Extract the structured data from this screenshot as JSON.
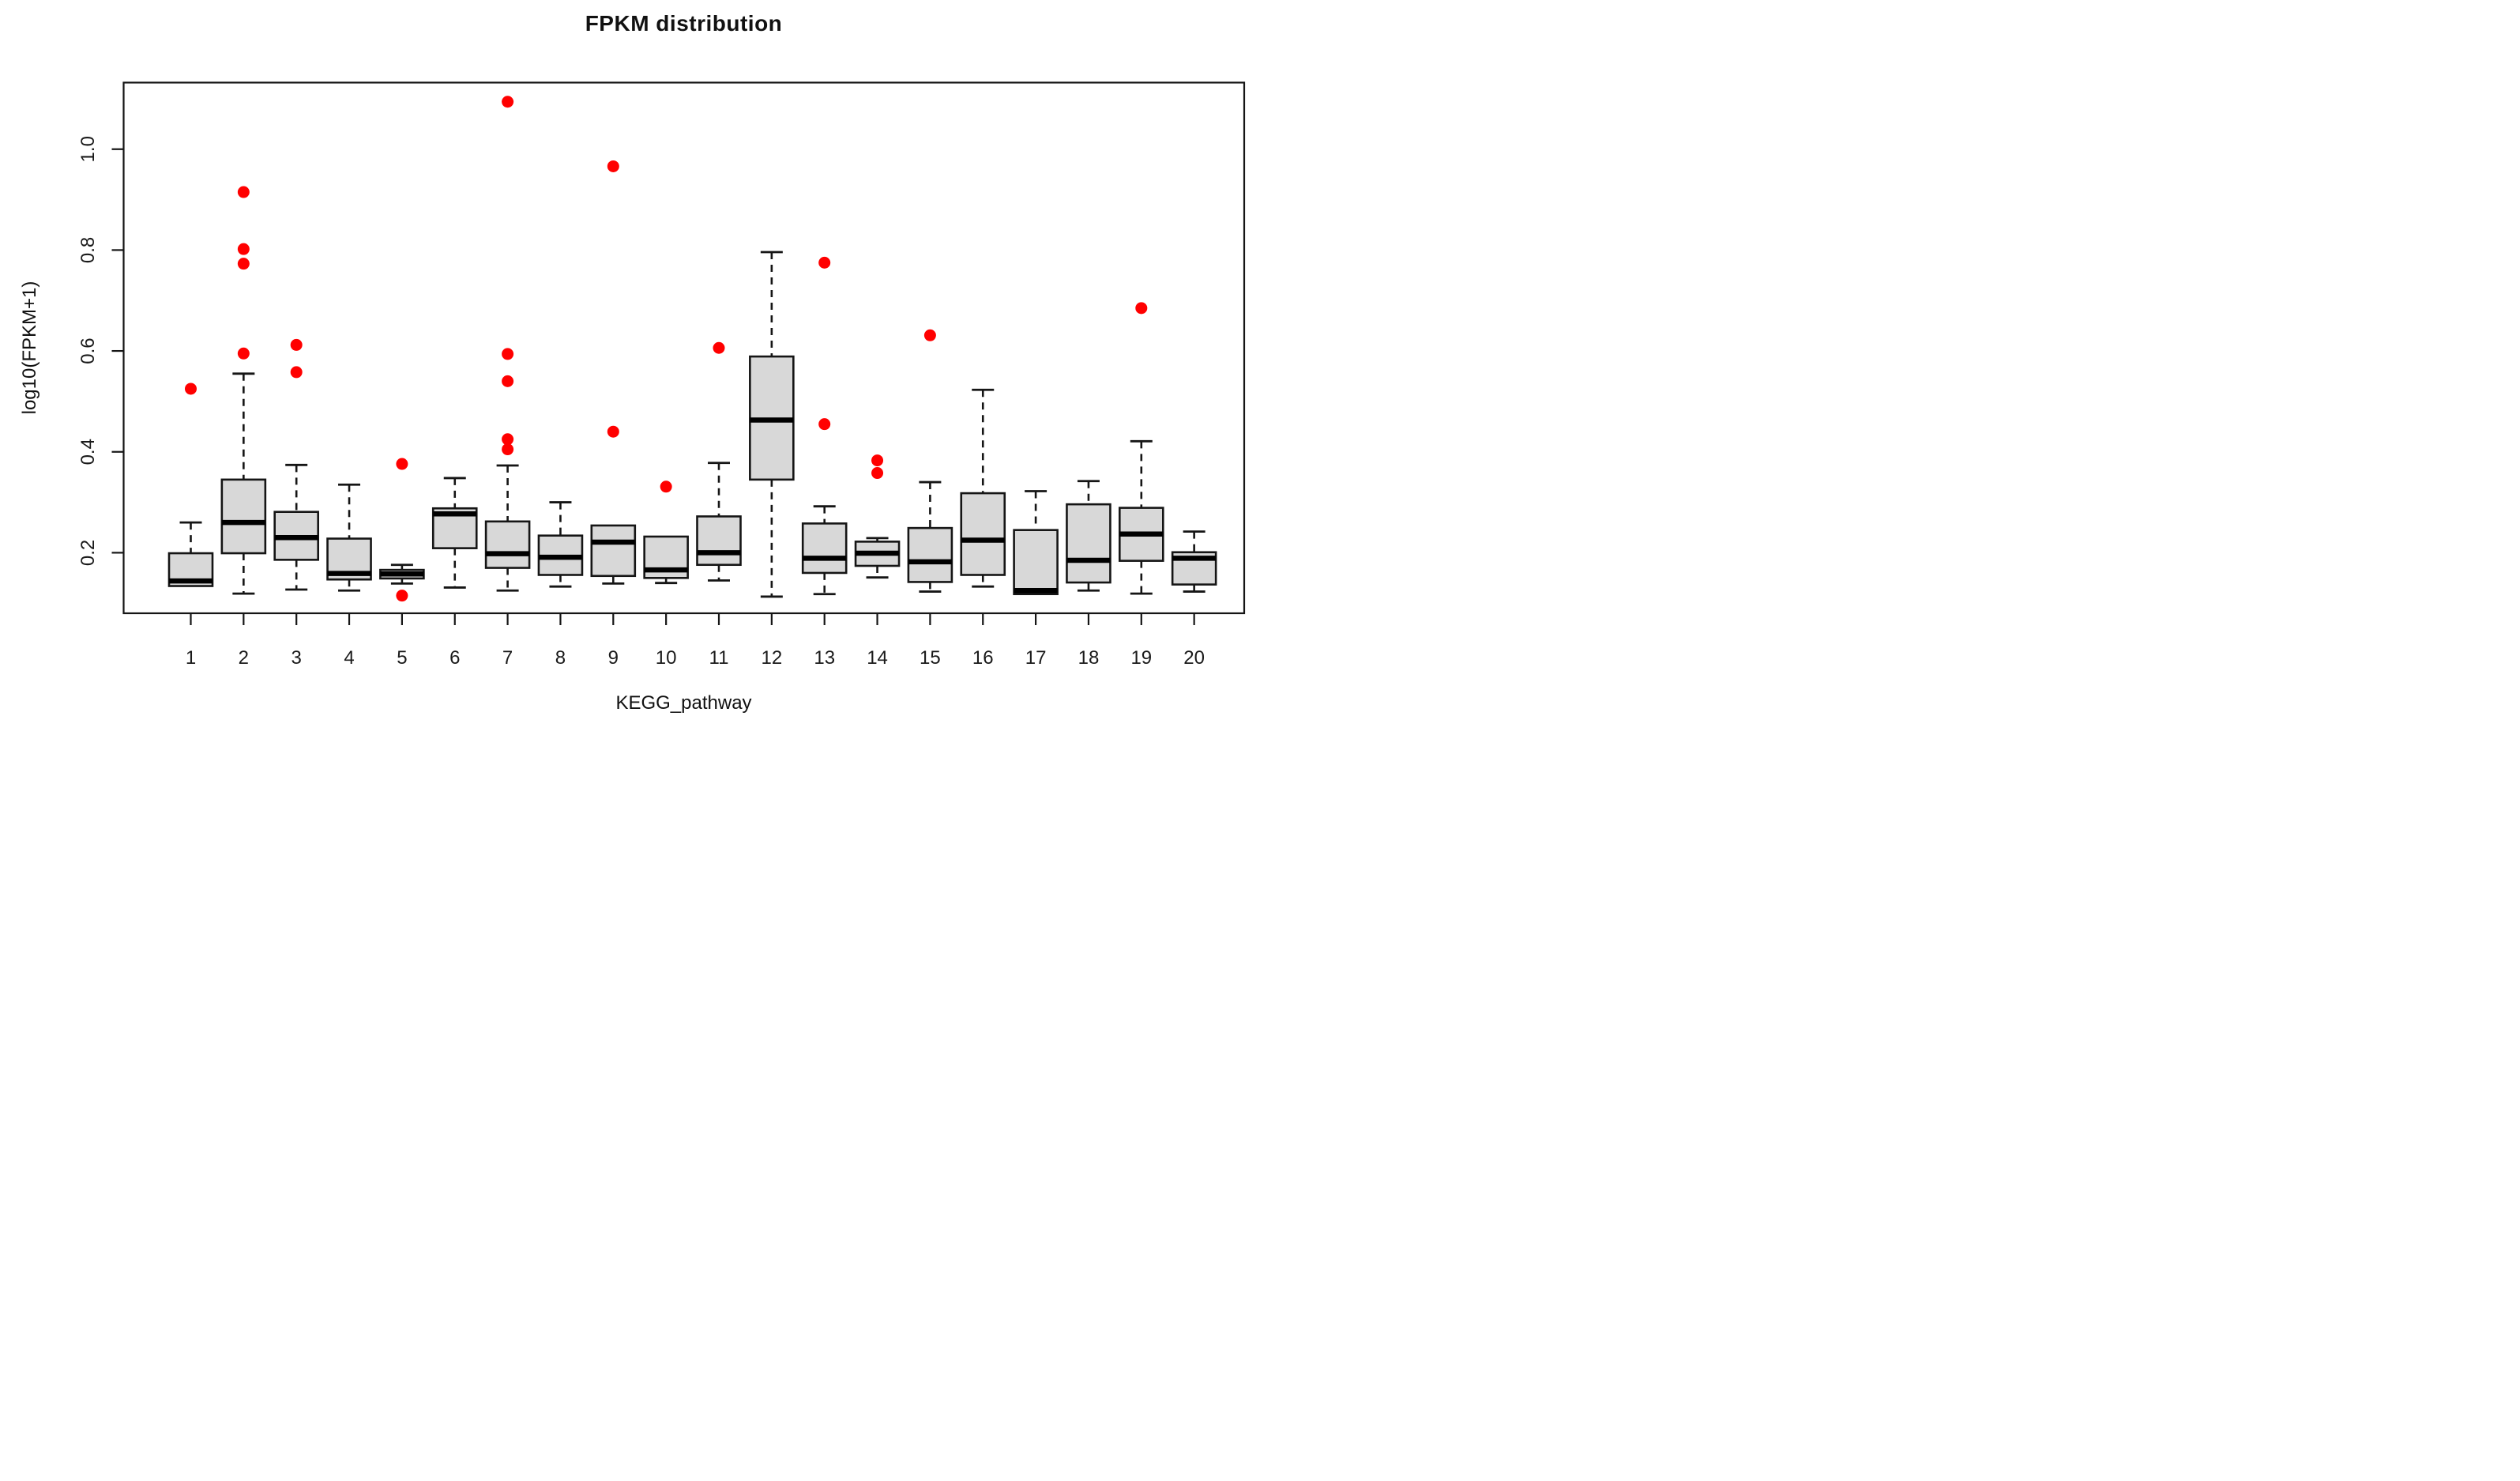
{
  "chart_data": {
    "type": "boxplot",
    "title": "FPKM distribution",
    "xlabel": "KEGG_pathway",
    "ylabel": "log10(FPKM+1)",
    "categories": [
      "1",
      "2",
      "3",
      "4",
      "5",
      "6",
      "7",
      "8",
      "9",
      "10",
      "11",
      "12",
      "13",
      "14",
      "15",
      "16",
      "17",
      "18",
      "19",
      "20"
    ],
    "y_ticks": [
      0.2,
      0.4,
      0.6,
      0.8,
      1.0
    ],
    "y_tick_labels": [
      "0.2",
      "0.4",
      "0.6",
      "0.8",
      "1.0"
    ],
    "ylim": [
      0.08,
      1.132
    ],
    "grid": false,
    "legend": "none",
    "colors": {
      "box_fill": "#d8d8d8",
      "box_border": "#151515",
      "median": "#000000",
      "whisker": "#151515",
      "outlier": "#ff0000",
      "axis_text": "#1a1a1a",
      "frame": "#151515"
    },
    "boxes": [
      {
        "cat": "1",
        "min": 0.13,
        "q1": 0.134,
        "median": 0.144,
        "q3": 0.199,
        "max": 0.26,
        "outliers": [
          0.525
        ]
      },
      {
        "cat": "2",
        "min": 0.119,
        "q1": 0.199,
        "median": 0.26,
        "q3": 0.345,
        "max": 0.555,
        "outliers": [
          0.595,
          0.773,
          0.802,
          0.915
        ]
      },
      {
        "cat": "3",
        "min": 0.127,
        "q1": 0.186,
        "median": 0.23,
        "q3": 0.281,
        "max": 0.374,
        "outliers": [
          0.558,
          0.612
        ]
      },
      {
        "cat": "4",
        "min": 0.125,
        "q1": 0.147,
        "median": 0.159,
        "q3": 0.228,
        "max": 0.335,
        "outliers": []
      },
      {
        "cat": "5",
        "min": 0.139,
        "q1": 0.149,
        "median": 0.158,
        "q3": 0.166,
        "max": 0.176,
        "outliers": [
          0.115,
          0.376
        ]
      },
      {
        "cat": "6",
        "min": 0.131,
        "q1": 0.209,
        "median": 0.277,
        "q3": 0.288,
        "max": 0.348,
        "outliers": []
      },
      {
        "cat": "7",
        "min": 0.125,
        "q1": 0.17,
        "median": 0.198,
        "q3": 0.262,
        "max": 0.373,
        "outliers": [
          0.405,
          0.425,
          0.54,
          0.594,
          1.094
        ]
      },
      {
        "cat": "8",
        "min": 0.133,
        "q1": 0.156,
        "median": 0.191,
        "q3": 0.234,
        "max": 0.3,
        "outliers": []
      },
      {
        "cat": "9",
        "min": 0.139,
        "q1": 0.154,
        "median": 0.221,
        "q3": 0.254,
        "max": 0.254,
        "outliers": [
          0.44,
          0.966
        ]
      },
      {
        "cat": "10",
        "min": 0.14,
        "q1": 0.15,
        "median": 0.166,
        "q3": 0.232,
        "max": 0.232,
        "outliers": [
          0.331
        ]
      },
      {
        "cat": "11",
        "min": 0.145,
        "q1": 0.176,
        "median": 0.2,
        "q3": 0.272,
        "max": 0.378,
        "outliers": [
          0.606
        ]
      },
      {
        "cat": "12",
        "min": 0.113,
        "q1": 0.345,
        "median": 0.463,
        "q3": 0.589,
        "max": 0.796,
        "outliers": []
      },
      {
        "cat": "13",
        "min": 0.118,
        "q1": 0.16,
        "median": 0.189,
        "q3": 0.258,
        "max": 0.292,
        "outliers": [
          0.455,
          0.775
        ]
      },
      {
        "cat": "14",
        "min": 0.151,
        "q1": 0.174,
        "median": 0.199,
        "q3": 0.222,
        "max": 0.229,
        "outliers": [
          0.358,
          0.383
        ]
      },
      {
        "cat": "15",
        "min": 0.123,
        "q1": 0.142,
        "median": 0.182,
        "q3": 0.249,
        "max": 0.34,
        "outliers": [
          0.631
        ]
      },
      {
        "cat": "16",
        "min": 0.133,
        "q1": 0.156,
        "median": 0.225,
        "q3": 0.318,
        "max": 0.523,
        "outliers": []
      },
      {
        "cat": "17",
        "min": 0.114,
        "q1": 0.118,
        "median": 0.125,
        "q3": 0.245,
        "max": 0.322,
        "outliers": []
      },
      {
        "cat": "18",
        "min": 0.125,
        "q1": 0.141,
        "median": 0.185,
        "q3": 0.296,
        "max": 0.342,
        "outliers": []
      },
      {
        "cat": "19",
        "min": 0.119,
        "q1": 0.184,
        "median": 0.237,
        "q3": 0.289,
        "max": 0.421,
        "outliers": [
          0.685
        ]
      },
      {
        "cat": "20",
        "min": 0.123,
        "q1": 0.137,
        "median": 0.189,
        "q3": 0.201,
        "max": 0.242,
        "outliers": []
      }
    ]
  }
}
